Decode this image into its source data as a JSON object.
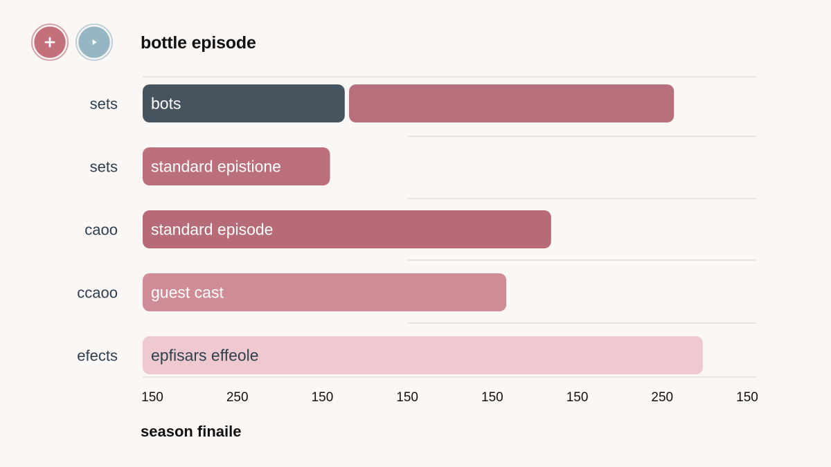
{
  "title": "bottle episode",
  "x_caption": "season finaile",
  "buttons": {
    "add_icon": "plus-icon",
    "play_icon": "play-icon"
  },
  "chart_data": {
    "type": "bar",
    "orientation": "horizontal",
    "categories": [
      "sets",
      "sets",
      "caoo",
      "ccaoo",
      "efects"
    ],
    "x_tick_labels": [
      "150",
      "250",
      "150",
      "150",
      "150",
      "150",
      "250",
      "150"
    ],
    "x_range": [
      0,
      1
    ],
    "grid": true,
    "legend": "none",
    "bars": [
      {
        "category": "sets",
        "segments": [
          {
            "label": "bots",
            "start": 0.0,
            "end": 0.329,
            "color": "#46545f",
            "text_color": "#ffffff"
          },
          {
            "label": "",
            "start": 0.336,
            "end": 0.865,
            "color": "#b66f7b",
            "text_color": "#ffffff"
          }
        ]
      },
      {
        "category": "sets",
        "segments": [
          {
            "label": "standard epistione",
            "start": 0.0,
            "end": 0.305,
            "color": "#bb6f7b",
            "text_color": "#ffffff"
          }
        ]
      },
      {
        "category": "caoo",
        "segments": [
          {
            "label": "standard episode",
            "start": 0.0,
            "end": 0.665,
            "color": "#b66b77",
            "text_color": "#ffffff"
          }
        ]
      },
      {
        "category": "ccaoo",
        "segments": [
          {
            "label": "guest cast",
            "start": 0.0,
            "end": 0.592,
            "color": "#d08c96",
            "text_color": "#ffffff"
          }
        ]
      },
      {
        "category": "efects",
        "segments": [
          {
            "label": "epfisars effeole",
            "start": 0.0,
            "end": 0.912,
            "color": "#efc9d0",
            "text_color": "#2e3f4d"
          }
        ]
      }
    ],
    "colors": {
      "category_label": "#2c3e50",
      "tick_label": "#111111",
      "grid": "#d7d3cf"
    }
  }
}
